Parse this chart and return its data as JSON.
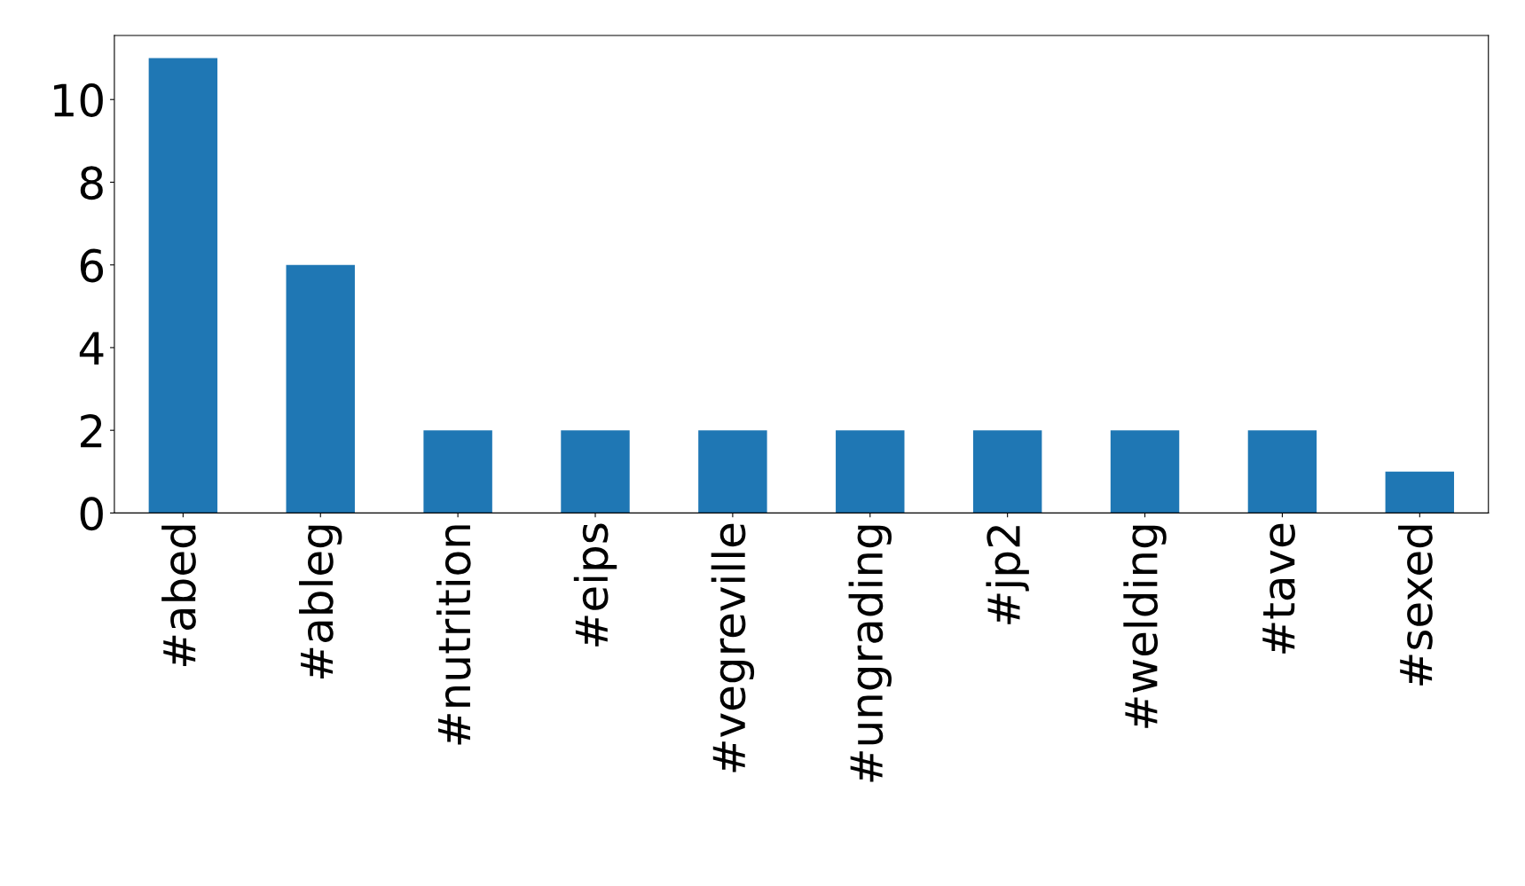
{
  "chart_data": {
    "type": "bar",
    "categories": [
      "#abed",
      "#ableg",
      "#nutrition",
      "#eips",
      "#vegreville",
      "#ungrading",
      "#jp2",
      "#welding",
      "#tave",
      "#sexed"
    ],
    "values": [
      11,
      6,
      2,
      2,
      2,
      2,
      2,
      2,
      2,
      1
    ],
    "color": "#1f77b4",
    "ylim": [
      0,
      11.55
    ],
    "yticks": [
      0,
      2,
      4,
      6,
      8,
      10
    ],
    "grid": false
  }
}
